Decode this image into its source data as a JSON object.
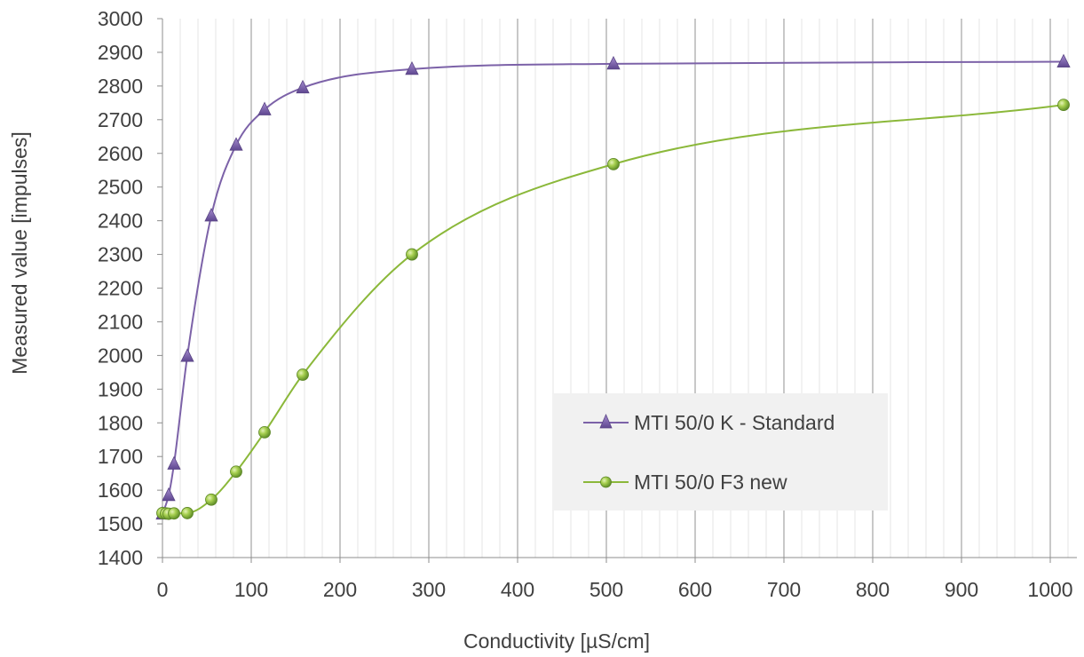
{
  "chart_data": {
    "type": "scatter",
    "title": "",
    "xlabel": "Conductivity [µS/cm]",
    "ylabel": "Measured value [impulses]",
    "xlim": [
      0,
      1030
    ],
    "ylim": [
      1400,
      3000
    ],
    "x_major_ticks": [
      0,
      100,
      200,
      300,
      400,
      500,
      600,
      700,
      800,
      900,
      1000
    ],
    "x_minor_step": 20,
    "y_ticks": [
      1400,
      1500,
      1600,
      1700,
      1800,
      1900,
      2000,
      2100,
      2200,
      2300,
      2400,
      2500,
      2600,
      2700,
      2800,
      2900,
      3000
    ],
    "grid": "vertical",
    "smooth_lines": true,
    "legend_position": "center-right",
    "series": [
      {
        "name": "MTI 50/0 K - Standard",
        "color": "#7c62a8",
        "marker": "triangle",
        "x": [
          0,
          7,
          13,
          28,
          55,
          83,
          115,
          158,
          281,
          508,
          1015
        ],
        "y": [
          1530,
          1585,
          1678,
          1998,
          2415,
          2625,
          2730,
          2795,
          2850,
          2866,
          2872
        ]
      },
      {
        "name": "MTI 50/0 F3 new",
        "color": "#8bb83a",
        "marker": "circle",
        "x": [
          0,
          4,
          7,
          13,
          28,
          55,
          83,
          115,
          158,
          281,
          508,
          1015
        ],
        "y": [
          1532,
          1531,
          1530,
          1531,
          1532,
          1572,
          1655,
          1772,
          1943,
          2300,
          2568,
          2744
        ]
      }
    ]
  }
}
